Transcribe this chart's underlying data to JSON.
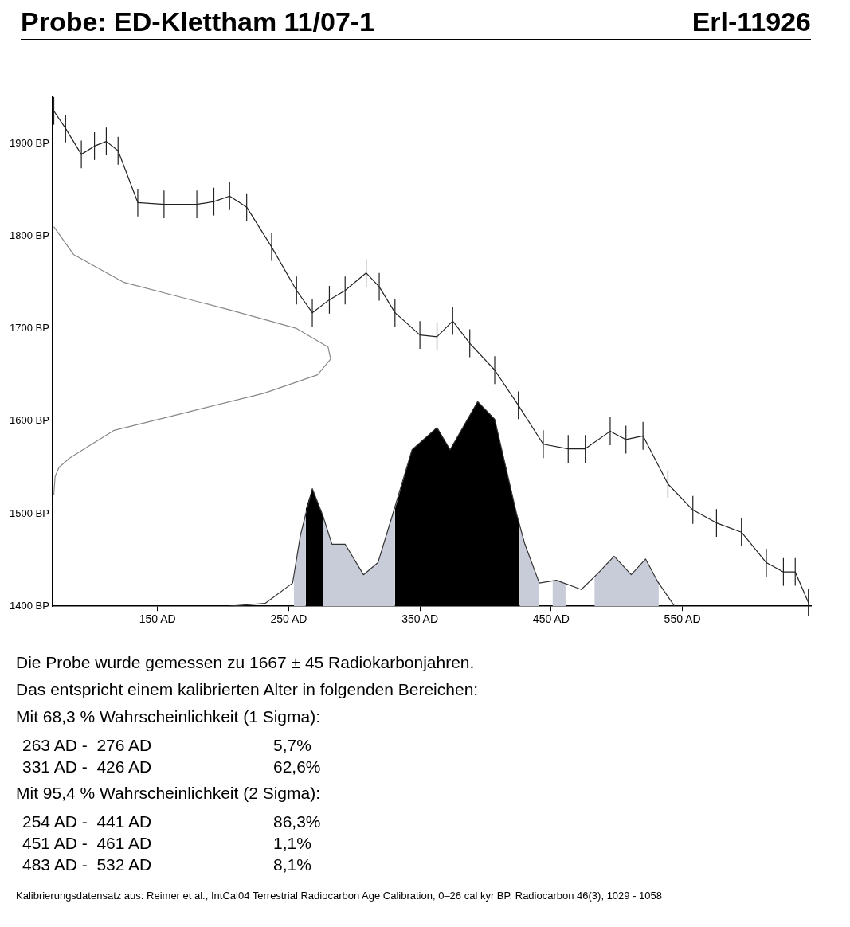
{
  "chart_data": {
    "type": "line",
    "title": "Probe: ED-Klettham 11/07-1",
    "subtitle": "Erl-11926",
    "xlim": [
      70,
      648
    ],
    "ylim": [
      1400,
      1950
    ],
    "xticks": [
      {
        "value": 150,
        "label": "150 AD"
      },
      {
        "value": 250,
        "label": "250 AD"
      },
      {
        "value": 350,
        "label": "350 AD"
      },
      {
        "value": 450,
        "label": "450 AD"
      },
      {
        "value": 550,
        "label": "550 AD"
      }
    ],
    "yticks": [
      {
        "value": 1400,
        "label": "1400 BP"
      },
      {
        "value": 1500,
        "label": "1500 BP"
      },
      {
        "value": 1600,
        "label": "1600 BP"
      },
      {
        "value": 1700,
        "label": "1700 BP"
      },
      {
        "value": 1800,
        "label": "1800 BP"
      },
      {
        "value": 1900,
        "label": "1900 BP"
      }
    ],
    "grid": false,
    "legend": false,
    "marker": "none",
    "line_style": "solid",
    "series": [
      {
        "type": "area",
        "color": "#c8ccd8",
        "x": [
          254,
          259,
          263,
          270,
          276,
          283,
          293,
          307,
          318,
          329,
          331,
          380,
          426,
          430,
          441,
          446,
          451,
          454,
          461,
          472,
          483,
          486,
          498,
          511,
          522,
          531,
          532
        ],
        "values": [
          1430,
          1477,
          1505,
          null,
          1498,
          1467,
          1467,
          1434,
          1447,
          1498,
          1505,
          null,
          1488,
          1467,
          1425,
          null,
          1427,
          1428,
          1424,
          null,
          1432,
          1436,
          1454,
          1434,
          1451,
          1427,
          1424
        ]
      },
      {
        "type": "area",
        "color": "#000000",
        "x": [
          263,
          268,
          276,
          300,
          331,
          344,
          363,
          373,
          394,
          407,
          424,
          426
        ],
        "values": [
          1505,
          1527,
          1498,
          null,
          1505,
          1569,
          1593,
          1569,
          1621,
          1602,
          1498,
          1488
        ]
      },
      {
        "type": "line",
        "color": "#333333",
        "x": [
          205,
          232,
          253,
          259,
          268,
          276,
          283,
          293,
          307,
          318,
          329,
          344,
          363,
          373,
          394,
          407,
          424,
          430,
          441,
          454,
          473,
          486,
          498,
          511,
          522,
          531,
          544
        ],
        "values": [
          1400,
          1403,
          1425,
          1477,
          1527,
          1498,
          1467,
          1467,
          1434,
          1447,
          1498,
          1569,
          1593,
          1569,
          1621,
          1602,
          1498,
          1467,
          1425,
          1428,
          1418,
          1436,
          1454,
          1434,
          1451,
          1427,
          1400
        ]
      },
      {
        "type": "line",
        "color": "#888888",
        "x": [
          71,
          72,
          75,
          83,
          117,
          174,
          231,
          272,
          282,
          280,
          256,
          205,
          124,
          86,
          71
        ],
        "values": [
          1520,
          1540,
          1550,
          1560,
          1590,
          1610,
          1630,
          1650,
          1667,
          1680,
          1700,
          1720,
          1750,
          1780,
          1810
        ]
      },
      {
        "type": "line",
        "color": "#222222",
        "x": [
          71,
          80,
          92,
          102,
          111,
          120,
          135,
          155,
          180,
          193,
          205,
          218,
          237,
          256,
          268,
          281,
          293,
          309,
          319,
          331,
          350,
          363,
          375,
          388,
          407,
          425,
          444,
          463,
          476,
          495,
          507,
          520,
          539,
          558,
          576,
          595,
          614,
          627,
          636,
          646
        ],
        "values": [
          1935,
          1916,
          1888,
          1897,
          1902,
          1892,
          1836,
          1834,
          1834,
          1837,
          1843,
          1831,
          1788,
          1741,
          1717,
          1731,
          1741,
          1760,
          1745,
          1717,
          1693,
          1691,
          1708,
          1684,
          1655,
          1617,
          1575,
          1570,
          1570,
          1589,
          1580,
          1584,
          1532,
          1504,
          1490,
          1480,
          1447,
          1437,
          1437,
          1404
        ],
        "errors": [
          15,
          15,
          15,
          15,
          15,
          15,
          15,
          15,
          15,
          15,
          15,
          15,
          15,
          15,
          15,
          15,
          15,
          15,
          15,
          15,
          15,
          15,
          15,
          15,
          15,
          15,
          15,
          15,
          15,
          15,
          15,
          15,
          15,
          15,
          15,
          15,
          15,
          15,
          15,
          15
        ]
      }
    ],
    "annotations": [
      "Die Probe wurde gemessen zu 1667 ± 45 Radiokarbonjahren.",
      "Das entspricht einem kalibrierten Alter in folgenden Bereichen:",
      "Mit 68,3 % Wahrscheinlichkeit (1 Sigma):",
      "263 AD -  276 AD\t5,7%",
      "331 AD -  426 AD\t62,6%",
      "Mit 95,4 % Wahrscheinlichkeit (2 Sigma):",
      "254 AD -  441 AD\t86,3%",
      "451 AD -  461 AD\t1,1%",
      "483 AD -  532 AD\t8,1%",
      "Kalibrierungsdatensatz aus: Reimer et al., IntCal04 Terrestrial Radiocarbon Age Calibration, 0–26 cal kyr BP, Radiocarbon 46(3), 1029 - 1058"
    ]
  }
}
